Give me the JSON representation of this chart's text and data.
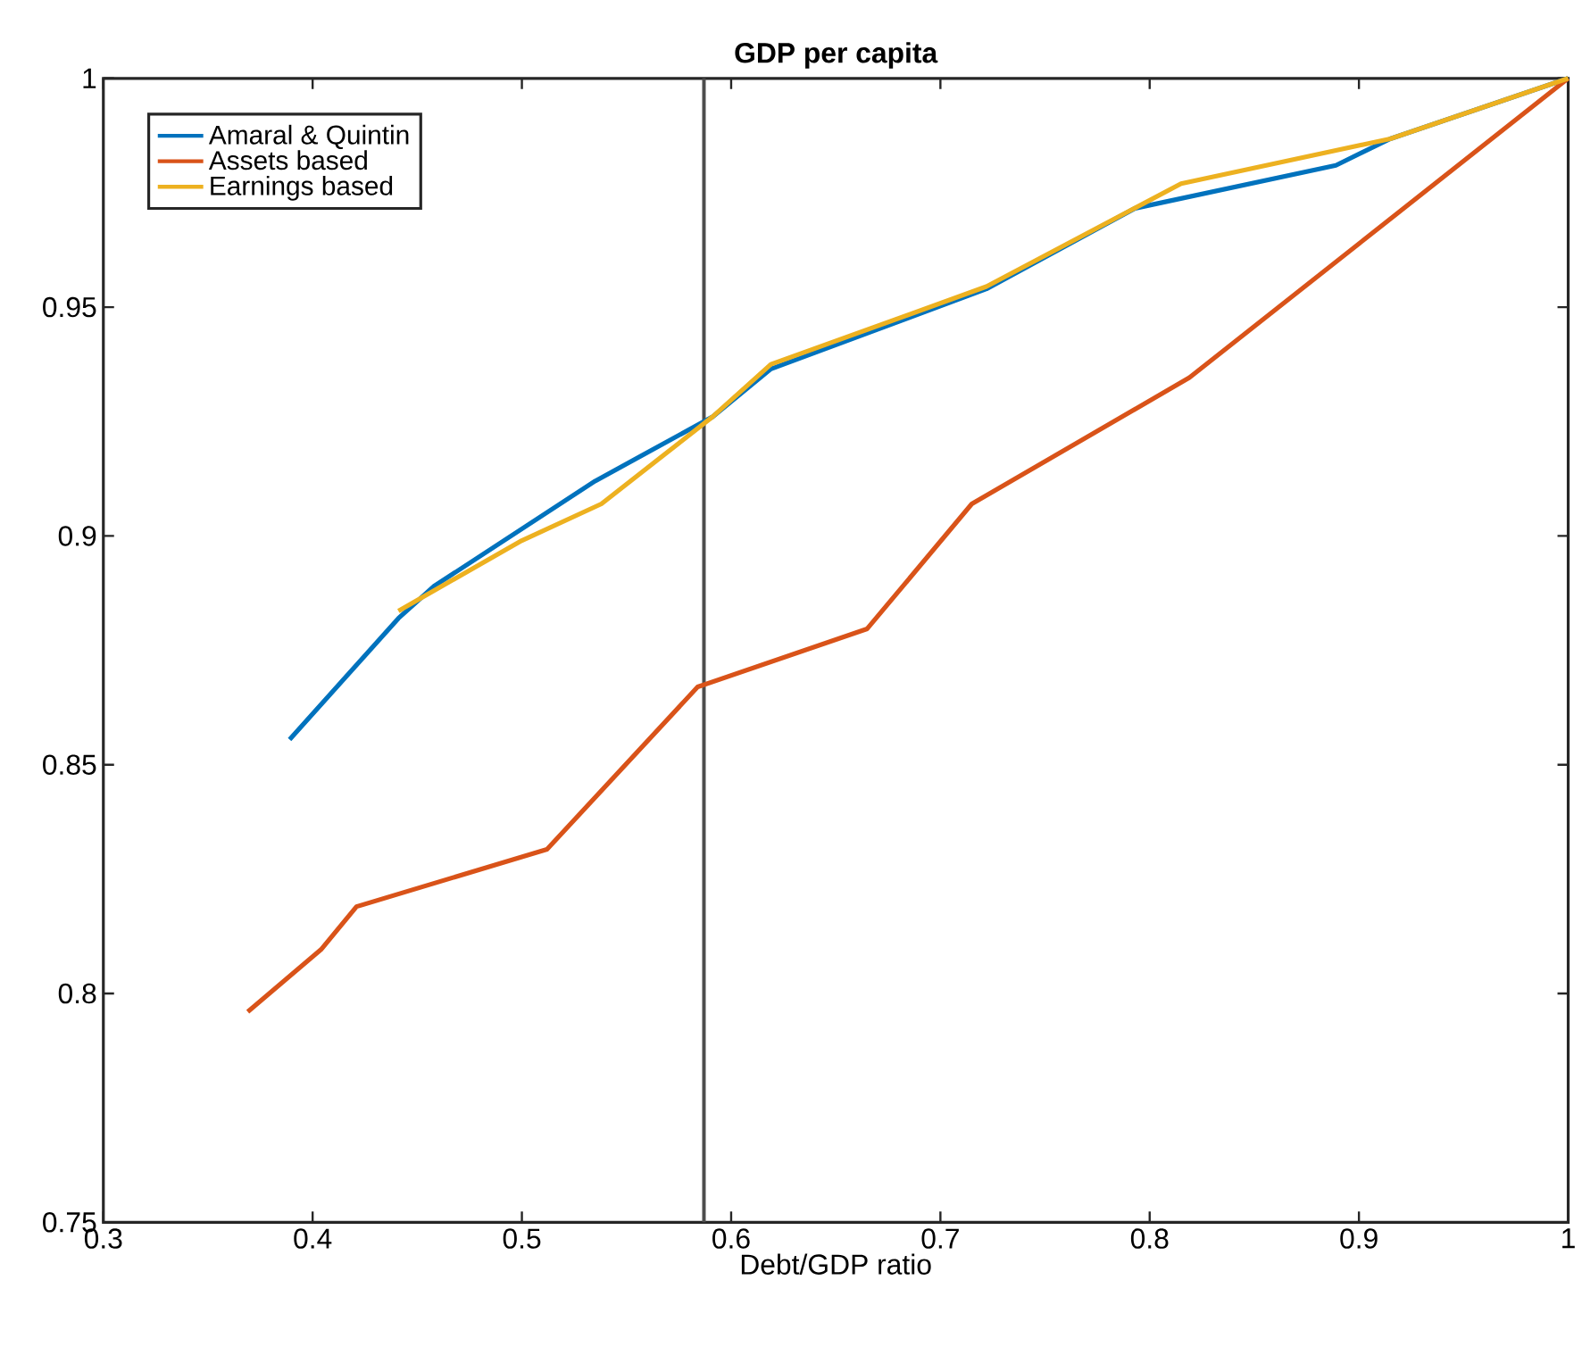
{
  "chart_data": {
    "type": "line",
    "title": "GDP per capita",
    "xlabel": "Debt/GDP ratio",
    "xlim": [
      0.3,
      1
    ],
    "ylim": [
      0.75,
      1
    ],
    "xticks": [
      0.3,
      0.4,
      0.5,
      0.6,
      0.7,
      0.8,
      0.9,
      1
    ],
    "yticks": [
      0.75,
      0.8,
      0.85,
      0.9,
      0.95,
      1
    ],
    "legend": "top left",
    "grid": false,
    "line_style": "solid",
    "marker": "none",
    "ref_lines": [
      {
        "axis": "x",
        "value": 0.587,
        "color": "#4d4d4d"
      }
    ],
    "series": [
      {
        "name": "Amaral & Quintin",
        "color": "#0072bd",
        "x": [
          0.389,
          0.441,
          0.458,
          0.535,
          0.591,
          0.619,
          0.722,
          0.793,
          0.889,
          0.915,
          1
        ],
        "values": [
          0.8555,
          0.882,
          0.889,
          0.912,
          0.926,
          0.9365,
          0.954,
          0.9716,
          0.981,
          0.9868,
          1
        ]
      },
      {
        "name": "Assets based",
        "color": "#d95319",
        "x": [
          0.369,
          0.404,
          0.421,
          0.512,
          0.584,
          0.665,
          0.715,
          0.819,
          1
        ],
        "values": [
          0.796,
          0.8096,
          0.819,
          0.8315,
          0.867,
          0.8797,
          0.907,
          0.9346,
          1
        ]
      },
      {
        "name": "Earnings based",
        "color": "#edb120",
        "x": [
          0.441,
          0.5,
          0.538,
          0.591,
          0.619,
          0.722,
          0.815,
          0.915,
          1
        ],
        "values": [
          0.8836,
          0.899,
          0.907,
          0.926,
          0.9375,
          0.9545,
          0.977,
          0.9868,
          1
        ]
      }
    ]
  }
}
